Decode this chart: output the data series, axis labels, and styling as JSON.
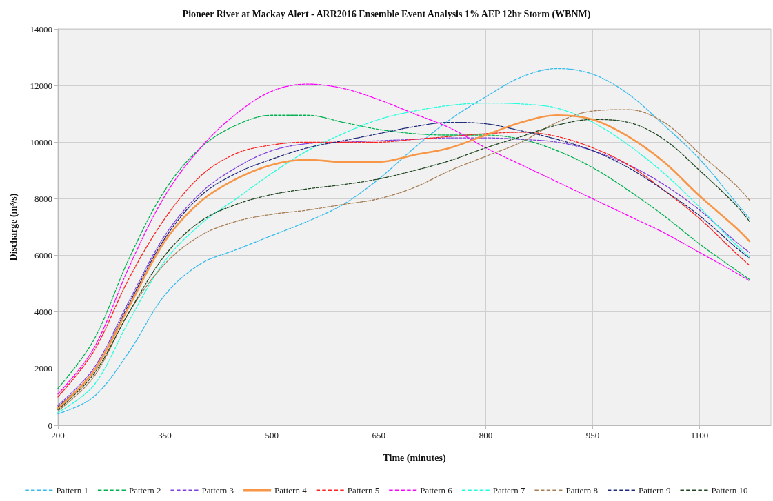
{
  "chart_data": {
    "type": "line",
    "title": "Pioneer River at Mackay Alert - ARR2016 Ensemble Event Analysis 1% AEP 12hr Storm (WBNM)",
    "xlabel": "Time (minutes)",
    "ylabel": "Discharge (m³/s)",
    "x": [
      200,
      250,
      300,
      350,
      400,
      450,
      500,
      550,
      600,
      650,
      700,
      750,
      800,
      850,
      900,
      950,
      1000,
      1050,
      1100,
      1150,
      1170
    ],
    "xlim": [
      200,
      1200
    ],
    "xticks": [
      200,
      350,
      500,
      650,
      800,
      950,
      1100
    ],
    "ylim": [
      0,
      14000
    ],
    "yticks": [
      0,
      2000,
      4000,
      6000,
      8000,
      10000,
      12000,
      14000
    ],
    "grid": true,
    "legend": "bottom",
    "marker": "none",
    "series": [
      {
        "name": "Pattern 1",
        "color": "#33bbee",
        "line_style": "dashed",
        "values": [
          400,
          1000,
          2600,
          4600,
          5700,
          6200,
          6700,
          7200,
          7800,
          8700,
          9800,
          10800,
          11600,
          12300,
          12600,
          12400,
          11700,
          10600,
          9400,
          7900,
          7300
        ]
      },
      {
        "name": "Pattern 2",
        "color": "#00b050",
        "line_style": "dashed",
        "values": [
          1300,
          3000,
          5900,
          8300,
          9800,
          10600,
          10950,
          10950,
          10700,
          10450,
          10300,
          10250,
          10250,
          10100,
          9700,
          9100,
          8300,
          7400,
          6400,
          5500,
          5150
        ]
      },
      {
        "name": "Pattern 3",
        "color": "#7f3fdf",
        "line_style": "dashed",
        "values": [
          700,
          2000,
          4400,
          6700,
          8200,
          9100,
          9700,
          9950,
          10000,
          10050,
          10100,
          10150,
          10150,
          10100,
          10000,
          9700,
          9200,
          8500,
          7600,
          6500,
          6100
        ]
      },
      {
        "name": "Pattern 4",
        "color": "#f79646",
        "line_style": "solid",
        "values": [
          600,
          1900,
          4200,
          6500,
          7900,
          8700,
          9200,
          9380,
          9300,
          9300,
          9550,
          9800,
          10250,
          10700,
          10950,
          10800,
          10200,
          9300,
          8100,
          7000,
          6500
        ]
      },
      {
        "name": "Pattern 5",
        "color": "#ff2020",
        "line_style": "dashed",
        "values": [
          1000,
          2600,
          5200,
          7300,
          8800,
          9600,
          9900,
          10000,
          10000,
          10000,
          10100,
          10200,
          10300,
          10350,
          10200,
          9800,
          9200,
          8300,
          7300,
          6100,
          5650
        ]
      },
      {
        "name": "Pattern 6",
        "color": "#ff00ff",
        "line_style": "dashed",
        "values": [
          1100,
          2700,
          5600,
          8100,
          9800,
          11000,
          11800,
          12050,
          11900,
          11500,
          11000,
          10500,
          9800,
          9200,
          8600,
          8000,
          7400,
          6800,
          6100,
          5400,
          5100
        ]
      },
      {
        "name": "Pattern 7",
        "color": "#22ffdd",
        "line_style": "dashed",
        "values": [
          450,
          1400,
          3700,
          5800,
          7100,
          8000,
          8900,
          9700,
          10300,
          10800,
          11100,
          11300,
          11380,
          11350,
          11200,
          10700,
          9900,
          8900,
          7700,
          6400,
          5950
        ]
      },
      {
        "name": "Pattern 8",
        "color": "#a67c52",
        "line_style": "dashed",
        "values": [
          500,
          1700,
          4000,
          5700,
          6700,
          7200,
          7450,
          7600,
          7800,
          8000,
          8400,
          9000,
          9500,
          10000,
          10700,
          11100,
          11150,
          10700,
          9600,
          8500,
          7950
        ]
      },
      {
        "name": "Pattern 9",
        "color": "#1f2a7a",
        "line_style": "dashed",
        "values": [
          650,
          1900,
          4300,
          6600,
          8100,
          8900,
          9400,
          9800,
          10050,
          10300,
          10550,
          10700,
          10650,
          10400,
          10100,
          9700,
          9100,
          8300,
          7400,
          6300,
          5900
        ]
      },
      {
        "name": "Pattern 10",
        "color": "#1e4620",
        "line_style": "dashed",
        "values": [
          550,
          1800,
          4000,
          6000,
          7200,
          7800,
          8150,
          8350,
          8500,
          8700,
          9000,
          9350,
          9800,
          10200,
          10600,
          10800,
          10700,
          10100,
          9000,
          7800,
          7200
        ]
      }
    ]
  }
}
